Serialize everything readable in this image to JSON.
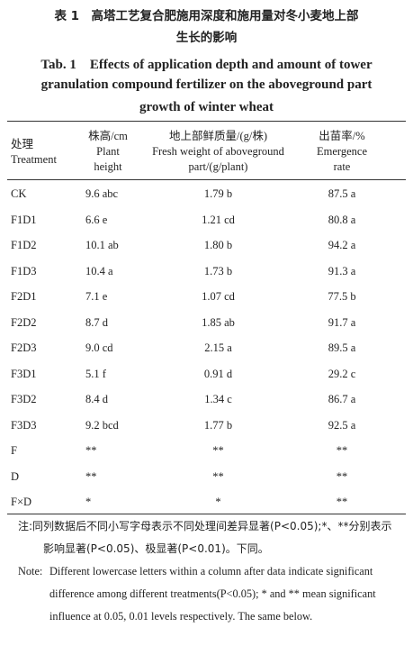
{
  "title_cn": [
    "表 1　高塔工艺复合肥施用深度和施用量对冬小麦地上部",
    "生长的影响"
  ],
  "title_en": [
    "Tab. 1　Effects of application depth and amount of tower",
    "granulation compound fertilizer on the aboveground part",
    "growth of winter wheat"
  ],
  "table": {
    "header": [
      [
        "处理",
        "Treatment"
      ],
      [
        "株高/cm",
        "Plant",
        "height"
      ],
      [
        "地上部鲜质量/(g/株)",
        "Fresh weight of aboveground",
        "part/(g/plant)"
      ],
      [
        "出苗率/%",
        "Emergence",
        "rate"
      ]
    ],
    "rows": [
      [
        "CK",
        "9.6 abc",
        "1.79 b",
        "87.5 a"
      ],
      [
        "F1D1",
        "6.6 e",
        "1.21 cd",
        "80.8 a"
      ],
      [
        "F1D2",
        "10.1 ab",
        "1.80 b",
        "94.2 a"
      ],
      [
        "F1D3",
        "10.4 a",
        "1.73 b",
        "91.3 a"
      ],
      [
        "F2D1",
        "7.1 e",
        "1.07 cd",
        "77.5 b"
      ],
      [
        "F2D2",
        "8.7 d",
        "1.85 ab",
        "91.7 a"
      ],
      [
        "F2D3",
        "9.0 cd",
        "2.15 a",
        "89.5 a"
      ],
      [
        "F3D1",
        "5.1 f",
        "0.91 d",
        "29.2 c"
      ],
      [
        "F3D2",
        "8.4 d",
        "1.34 c",
        "86.7 a"
      ],
      [
        "F3D3",
        "9.2 bcd",
        "1.77 b",
        "92.5 a"
      ],
      [
        "F",
        "**",
        "**",
        "**"
      ],
      [
        "D",
        "**",
        "**",
        "**"
      ],
      [
        "F×D",
        "*",
        "*",
        "**"
      ]
    ]
  },
  "notes": {
    "cn": "注:同列数据后不同小写字母表示不同处理间差异显著(P<0.05);*、**分别表示影响显著(P<0.05)、极显著(P<0.01)。下同。",
    "en_label": "Note:",
    "en": "Different lowercase letters within a column after data indicate significant difference among different treatments(P<0.05); * and ** mean significant influence at 0.05, 0.01 levels respectively. The same below."
  }
}
